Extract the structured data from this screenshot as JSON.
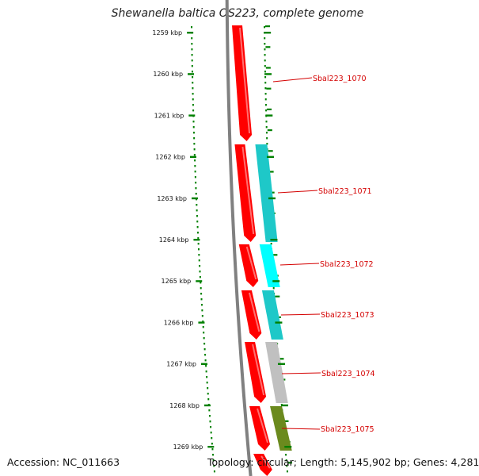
{
  "title": "Shewanella baltica OS223, complete genome",
  "accession_text": "Accession: NC_011663",
  "stats_text": "Topology: circular; Length: 5,145,902 bp; Genes: 4,281",
  "ticks": [
    "1259 kbp",
    "1260 kbp",
    "1261 kbp",
    "1262 kbp",
    "1263 kbp",
    "1264 kbp",
    "1265 kbp",
    "1266 kbp",
    "1267 kbp",
    "1268 kbp",
    "1269 kbp"
  ],
  "genes": [
    {
      "name": "Sbal223_1070",
      "strand_color": "#ff0000",
      "cog_color": null
    },
    {
      "name": "Sbal223_1071",
      "strand_color": "#ff0000",
      "cog_color": "#1ec8c8"
    },
    {
      "name": "Sbal223_1072",
      "strand_color": "#ff0000",
      "cog_color": "#00ffff"
    },
    {
      "name": "Sbal223_1073",
      "strand_color": "#ff0000",
      "cog_color": "#1ec8c8"
    },
    {
      "name": "Sbal223_1074",
      "strand_color": "#ff0000",
      "cog_color": "#c0c0c0"
    },
    {
      "name": "Sbal223_1075",
      "strand_color": "#ff0000",
      "cog_color": "#6b8a1e"
    }
  ],
  "colors": {
    "backbone": "#808080",
    "tick_marks": "#008000",
    "label_text": "#d40000"
  }
}
